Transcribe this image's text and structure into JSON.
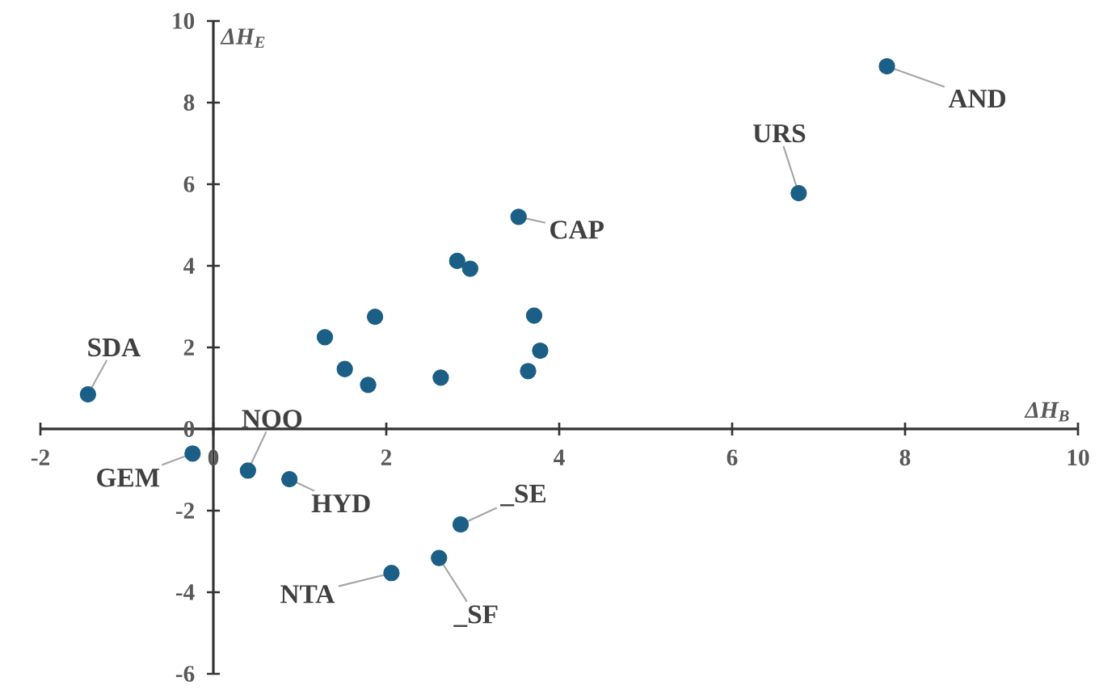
{
  "chart_data": {
    "type": "scatter",
    "xlabel": "ΔH$_{B}$",
    "ylabel": "ΔH$_{E}$",
    "xlim": [
      -2,
      10
    ],
    "ylim": [
      -6,
      10
    ],
    "xticks": [
      -2,
      0,
      2,
      4,
      6,
      8,
      10
    ],
    "yticks": [
      -6,
      -4,
      -2,
      0,
      2,
      4,
      6,
      8,
      10
    ],
    "marker": "circle",
    "series": [
      {
        "color": "#1b5e86",
        "x": [
          -1.45,
          -0.24,
          0.4,
          0.88,
          2.06,
          2.61,
          2.86,
          1.29,
          1.87,
          1.52,
          1.79,
          2.63,
          2.82,
          2.97,
          3.53,
          3.71,
          3.78,
          3.64,
          6.77,
          7.79
        ],
        "values": [
          0.85,
          -0.6,
          -1.02,
          -1.23,
          -3.53,
          -3.16,
          -2.34,
          2.25,
          2.75,
          1.47,
          1.08,
          1.26,
          4.12,
          3.93,
          5.2,
          2.78,
          1.92,
          1.42,
          5.78,
          8.89
        ]
      }
    ],
    "annotations": [
      {
        "text": "SDA",
        "x": -1.45,
        "y": 0.85
      },
      {
        "text": "GEM",
        "x": -0.24,
        "y": -0.6
      },
      {
        "text": "NOO",
        "x": 0.4,
        "y": -1.02
      },
      {
        "text": "HYD",
        "x": 0.88,
        "y": -1.23
      },
      {
        "text": "NTA",
        "x": 2.06,
        "y": -3.53
      },
      {
        "text": "_SF",
        "x": 2.61,
        "y": -3.16
      },
      {
        "text": "_SE",
        "x": 2.86,
        "y": -2.34
      },
      {
        "text": "CAP",
        "x": 3.53,
        "y": 5.2
      },
      {
        "text": "URS",
        "x": 6.77,
        "y": 5.78
      },
      {
        "text": "AND",
        "x": 7.79,
        "y": 8.89
      }
    ]
  }
}
